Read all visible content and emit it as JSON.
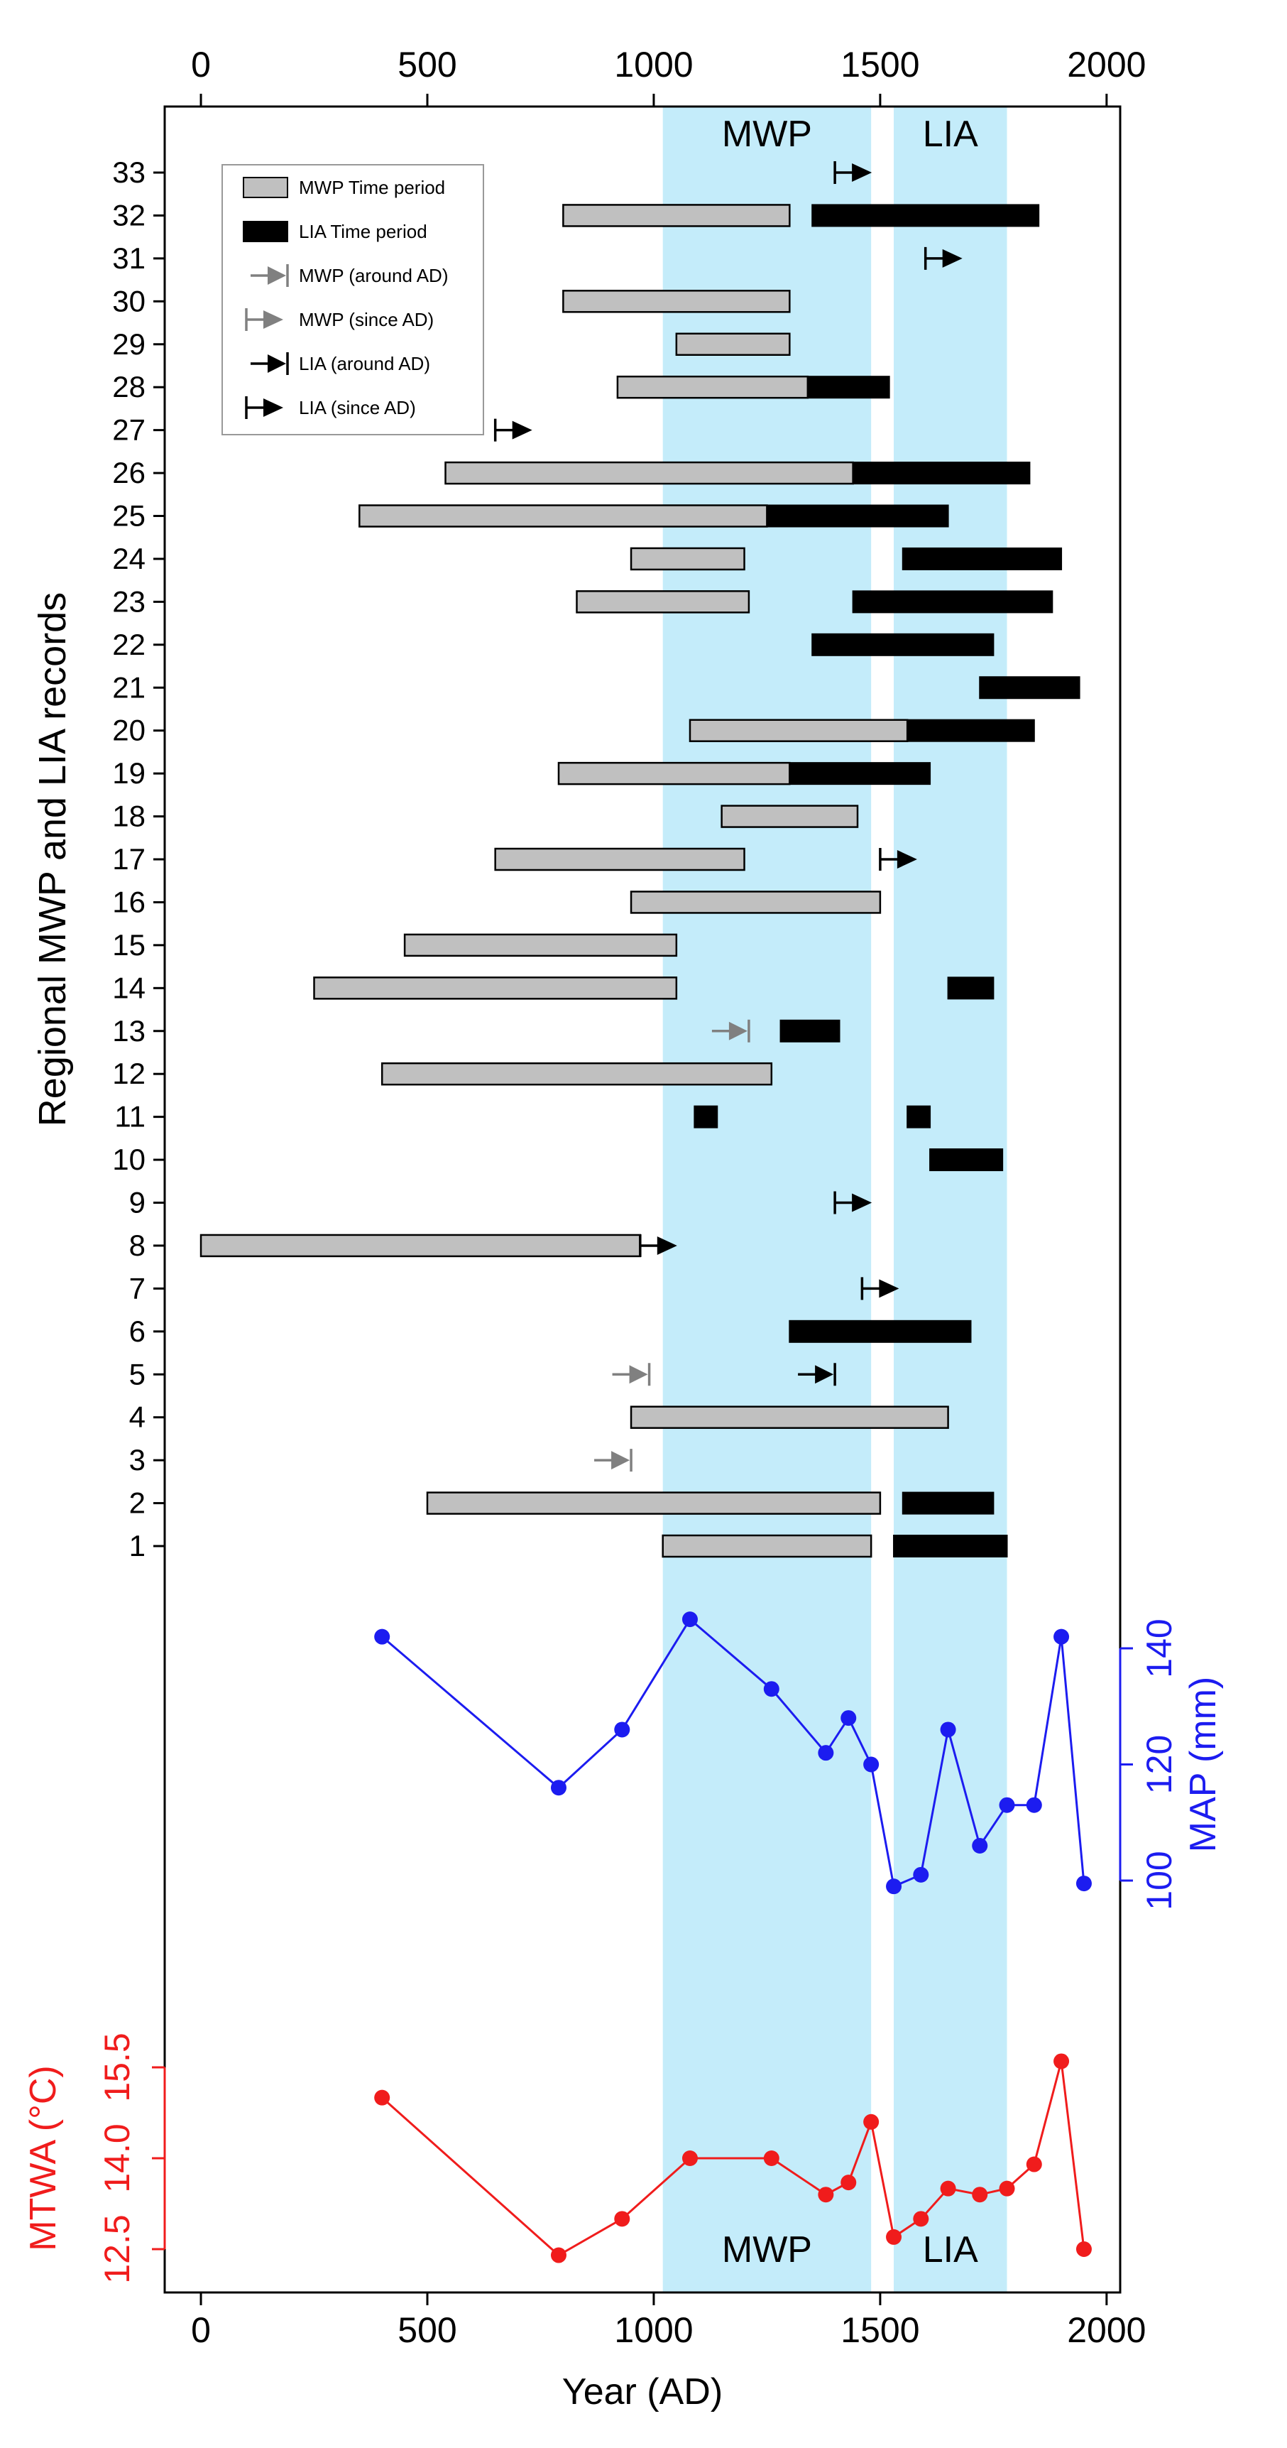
{
  "chart_data": {
    "type": "range-bar+line",
    "colors": {
      "band": "#c4ecfa",
      "mwp_bar": "#c0c0c0",
      "lia_bar": "#000000",
      "mwp_arrow": "#808080",
      "lia_arrow": "#000000",
      "map_series": "#1c1cf0",
      "mtwa_series": "#f01c1c",
      "axis": "#000000"
    },
    "x": {
      "label": "Year (AD)",
      "range": [
        -80,
        2030
      ],
      "ticks": [
        0,
        500,
        1000,
        1500,
        2000
      ],
      "tick_labels": [
        "0",
        "500",
        "1000",
        "1500",
        "2000"
      ]
    },
    "bands": [
      {
        "name": "MWP",
        "start": 1020,
        "end": 1480,
        "top_label": "MWP",
        "bottom_label": "MWP"
      },
      {
        "name": "LIA",
        "start": 1530,
        "end": 1780,
        "top_label": "LIA",
        "bottom_label": "LIA"
      }
    ],
    "records": {
      "ylabel": "Regional MWP and LIA records",
      "tick_labels": [
        "1",
        "2",
        "3",
        "4",
        "5",
        "6",
        "7",
        "8",
        "9",
        "10",
        "11",
        "12",
        "13",
        "14",
        "15",
        "16",
        "17",
        "18",
        "19",
        "20",
        "21",
        "22",
        "23",
        "24",
        "25",
        "26",
        "27",
        "28",
        "29",
        "30",
        "31",
        "32",
        "33"
      ],
      "mwp_bars": [
        {
          "record": 1,
          "start": 1020,
          "end": 1480
        },
        {
          "record": 2,
          "start": 500,
          "end": 1500
        },
        {
          "record": 4,
          "start": 950,
          "end": 1650
        },
        {
          "record": 8,
          "start": 0,
          "end": 970
        },
        {
          "record": 12,
          "start": 400,
          "end": 1260
        },
        {
          "record": 14,
          "start": 250,
          "end": 1050
        },
        {
          "record": 15,
          "start": 450,
          "end": 1050
        },
        {
          "record": 16,
          "start": 950,
          "end": 1500
        },
        {
          "record": 17,
          "start": 650,
          "end": 1200
        },
        {
          "record": 18,
          "start": 1150,
          "end": 1450
        },
        {
          "record": 19,
          "start": 790,
          "end": 1300
        },
        {
          "record": 20,
          "start": 1080,
          "end": 1560
        },
        {
          "record": 23,
          "start": 830,
          "end": 1210
        },
        {
          "record": 24,
          "start": 950,
          "end": 1200
        },
        {
          "record": 25,
          "start": 350,
          "end": 1250
        },
        {
          "record": 26,
          "start": 540,
          "end": 1440
        },
        {
          "record": 28,
          "start": 920,
          "end": 1340
        },
        {
          "record": 29,
          "start": 1050,
          "end": 1300
        },
        {
          "record": 30,
          "start": 800,
          "end": 1300
        },
        {
          "record": 32,
          "start": 800,
          "end": 1300
        }
      ],
      "lia_bars": [
        {
          "record": 1,
          "start": 1530,
          "end": 1780
        },
        {
          "record": 2,
          "start": 1550,
          "end": 1750
        },
        {
          "record": 6,
          "start": 1300,
          "end": 1700
        },
        {
          "record": 10,
          "start": 1610,
          "end": 1770
        },
        {
          "record": 11,
          "start": 1560,
          "end": 1610
        },
        {
          "record": 11,
          "start": 1090,
          "end": 1140
        },
        {
          "record": 13,
          "start": 1280,
          "end": 1410
        },
        {
          "record": 14,
          "start": 1650,
          "end": 1750
        },
        {
          "record": 19,
          "start": 1300,
          "end": 1610
        },
        {
          "record": 20,
          "start": 1560,
          "end": 1840
        },
        {
          "record": 21,
          "start": 1720,
          "end": 1940
        },
        {
          "record": 22,
          "start": 1350,
          "end": 1750
        },
        {
          "record": 23,
          "start": 1440,
          "end": 1880
        },
        {
          "record": 24,
          "start": 1550,
          "end": 1900
        },
        {
          "record": 25,
          "start": 1250,
          "end": 1650
        },
        {
          "record": 26,
          "start": 1440,
          "end": 1830
        },
        {
          "record": 28,
          "start": 1340,
          "end": 1520
        },
        {
          "record": 32,
          "start": 1350,
          "end": 1850
        }
      ],
      "markers": [
        {
          "record": 3,
          "kind": "mwp-around",
          "at": 950
        },
        {
          "record": 5,
          "kind": "mwp-around",
          "at": 990
        },
        {
          "record": 5,
          "kind": "lia-around",
          "at": 1400
        },
        {
          "record": 7,
          "kind": "lia-since",
          "at": 1460
        },
        {
          "record": 8,
          "kind": "lia-since",
          "at": 970
        },
        {
          "record": 9,
          "kind": "lia-since",
          "at": 1400
        },
        {
          "record": 13,
          "kind": "mwp-around",
          "at": 1210
        },
        {
          "record": 17,
          "kind": "lia-since",
          "at": 1500
        },
        {
          "record": 27,
          "kind": "lia-since",
          "at": 650
        },
        {
          "record": 31,
          "kind": "lia-since",
          "at": 1600
        },
        {
          "record": 33,
          "kind": "lia-since",
          "at": 1400
        }
      ],
      "legend": {
        "placement": "top-left",
        "items": [
          {
            "kind": "mwp-bar",
            "label": "MWP Time period"
          },
          {
            "kind": "lia-bar",
            "label": "LIA Time period"
          },
          {
            "kind": "mwp-around",
            "label": "MWP (around AD)"
          },
          {
            "kind": "mwp-since",
            "label": "MWP (since AD)"
          },
          {
            "kind": "lia-around",
            "label": "LIA (around AD)"
          },
          {
            "kind": "lia-since",
            "label": "LIA (since AD)"
          }
        ]
      }
    },
    "map": {
      "ylabel": "MAP (mm)",
      "axis_side": "right",
      "ylim": [
        92,
        148
      ],
      "ticks": [
        100,
        120,
        140
      ],
      "tick_labels": [
        "100",
        "120",
        "140"
      ],
      "x": [
        400,
        790,
        930,
        1080,
        1260,
        1380,
        1430,
        1480,
        1530,
        1590,
        1650,
        1720,
        1780,
        1840,
        1900,
        1950
      ],
      "y": [
        142,
        116,
        126,
        145,
        133,
        122,
        128,
        120,
        99,
        101,
        126,
        106,
        113,
        113,
        142,
        99.5
      ]
    },
    "mtwa": {
      "ylabel": "MTWA (°C)",
      "axis_side": "left",
      "ylim": [
        12.3,
        16.0
      ],
      "ticks": [
        12.5,
        14.0,
        15.5
      ],
      "tick_labels": [
        "12.5",
        "14.0",
        "15.5"
      ],
      "x": [
        400,
        790,
        930,
        1080,
        1260,
        1380,
        1430,
        1480,
        1530,
        1590,
        1650,
        1720,
        1780,
        1840,
        1900,
        1950
      ],
      "y": [
        15.0,
        12.4,
        13.0,
        14.0,
        14.0,
        13.4,
        13.6,
        14.6,
        12.7,
        13.0,
        13.5,
        13.4,
        13.5,
        13.9,
        15.6,
        12.5
      ]
    }
  }
}
